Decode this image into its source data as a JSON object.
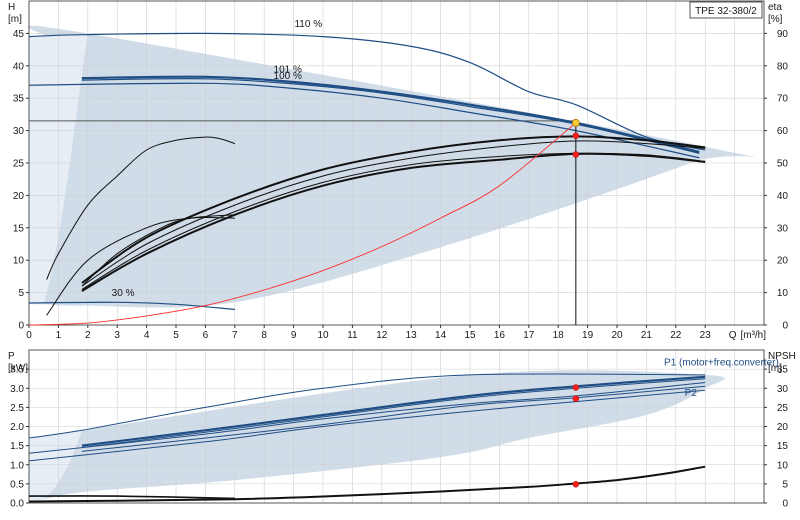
{
  "chart_data": [
    {
      "type": "line",
      "panel": "head-efficiency",
      "model_label": "TPE 32-380/2",
      "left_axis": {
        "symbol": "H",
        "unit": "[m]",
        "ticks": [
          0,
          5,
          10,
          15,
          20,
          25,
          30,
          35,
          40,
          45
        ],
        "range": [
          0,
          50
        ]
      },
      "right_axis": {
        "symbol": "eta",
        "unit": "[%]",
        "ticks": [
          0,
          10,
          20,
          30,
          40,
          50,
          60,
          70,
          80,
          90
        ],
        "range": [
          0,
          100
        ]
      },
      "x_axis": {
        "symbol": "Q",
        "unit": "[m³/h]",
        "ticks": [
          0,
          1,
          2,
          3,
          4,
          5,
          6,
          7,
          8,
          9,
          10,
          11,
          12,
          13,
          14,
          15,
          16,
          17,
          18,
          19,
          20,
          21,
          22,
          23
        ],
        "range": [
          0,
          25
        ]
      },
      "grid": true,
      "region": {
        "x": [
          0,
          0.5,
          2,
          23,
          22.5,
          14,
          7,
          1.8,
          0.5,
          0
        ],
        "y": [
          44.5,
          44.6,
          45,
          27.5,
          25,
          12,
          3.5,
          3,
          3.2,
          3.2
        ]
      },
      "speed_labels": [
        {
          "text": "110 %",
          "x": 9.5,
          "y": 46
        },
        {
          "text": "101 %",
          "x": 8.8,
          "y": 39
        },
        {
          "text": "100 %",
          "x": 8.8,
          "y": 38
        },
        {
          "text": "30 %",
          "x": 3.2,
          "y": 4.5
        }
      ],
      "series": [
        {
          "kind": "head",
          "x": [
            0,
            1.8,
            6,
            10,
            13,
            15,
            17,
            18.6,
            21,
            23
          ],
          "y": [
            44.5,
            44.8,
            45,
            44.5,
            43,
            40.5,
            36,
            34,
            29,
            27
          ]
        },
        {
          "kind": "head",
          "x": [
            1.8,
            6,
            9,
            12,
            15,
            18.6,
            22.8
          ],
          "y": [
            38.1,
            38.3,
            37.5,
            36,
            34,
            31.2,
            26.7
          ]
        },
        {
          "kind": "head",
          "x": [
            1.8,
            6,
            9,
            12,
            15,
            18.6,
            22.8
          ],
          "y": [
            37.8,
            38,
            37.2,
            35.8,
            33.7,
            31,
            26.5
          ]
        },
        {
          "kind": "head",
          "x": [
            0,
            6,
            9,
            12,
            15,
            18.6,
            22.8
          ],
          "y": [
            37,
            37.3,
            36.5,
            35,
            32.8,
            30,
            25.8
          ]
        },
        {
          "kind": "head",
          "x": [
            0,
            3,
            5,
            7
          ],
          "y": [
            3.4,
            3.5,
            3.2,
            2.4
          ]
        },
        {
          "kind": "efficiency",
          "x": [
            0.6,
            1,
            2,
            3,
            4,
            5,
            6,
            6.5,
            7
          ],
          "y": [
            14,
            22,
            37,
            46,
            54,
            57,
            58,
            57.5,
            56
          ]
        },
        {
          "kind": "efficiency",
          "x": [
            1.8,
            4,
            7,
            10,
            13,
            16,
            18.6,
            21,
            23
          ],
          "y": [
            13,
            27,
            39,
            48,
            53.5,
            57,
            58.2,
            57,
            54.8
          ]
        },
        {
          "kind": "efficiency",
          "x": [
            1.8,
            4,
            7,
            10,
            13,
            16,
            18.6,
            21,
            23
          ],
          "y": [
            12,
            25,
            37,
            46,
            51.5,
            55,
            56.8,
            56,
            54.5
          ]
        },
        {
          "kind": "efficiency",
          "x": [
            1.8,
            4,
            7,
            10,
            13,
            16,
            18.6,
            21,
            23
          ],
          "y": [
            11,
            23,
            35,
            44,
            49.5,
            52,
            53,
            52.5,
            50.5
          ]
        },
        {
          "kind": "efficiency",
          "x": [
            1.8,
            4,
            7,
            10,
            13,
            16,
            18.6,
            21,
            23
          ],
          "y": [
            10.5,
            22,
            34,
            43,
            48.5,
            51,
            52.8,
            52.2,
            50.3
          ]
        },
        {
          "kind": "efficiency",
          "x": [
            0.6,
            2,
            4,
            5.5,
            7
          ],
          "y": [
            3,
            20,
            30,
            33,
            33
          ]
        },
        {
          "kind": "efficiency",
          "x": [
            1.8,
            3,
            4.5,
            5.5,
            7
          ],
          "y": [
            12,
            22,
            30,
            33,
            34
          ]
        },
        {
          "kind": "system",
          "x": [
            0,
            2,
            4,
            6,
            8,
            10,
            12,
            14,
            16,
            18.6
          ],
          "y": [
            0,
            0.3,
            1.4,
            3,
            5.4,
            8.4,
            12.1,
            16.5,
            21.5,
            31.2
          ]
        }
      ],
      "reference_line": {
        "y": 31.5
      },
      "duty_point": {
        "q": 18.6,
        "h": 31.2,
        "eta_points": [
          58.4,
          52.6
        ]
      }
    },
    {
      "type": "line",
      "panel": "power-npsh",
      "left_axis": {
        "symbol": "P",
        "unit": "[kW]",
        "ticks": [
          0.0,
          0.5,
          1.0,
          1.5,
          2.0,
          2.5,
          3.0,
          3.5
        ],
        "range": [
          0,
          4
        ]
      },
      "right_axis": {
        "symbol": "NPSH",
        "unit": "[m]",
        "ticks": [
          0,
          5,
          10,
          15,
          20,
          25,
          30,
          35
        ],
        "range": [
          0,
          40
        ]
      },
      "x_axis": {
        "range": [
          0,
          25
        ]
      },
      "grid": true,
      "legend": [
        {
          "text": "P1 (motor+freq.converter)",
          "x": 21.6,
          "y": 3.6
        },
        {
          "text": "P2",
          "x": 22.3,
          "y": 2.8
        }
      ],
      "region": {
        "x": [
          0,
          1.8,
          15,
          23,
          23,
          21,
          17,
          14,
          7,
          2,
          0.5,
          0
        ],
        "y": [
          1.7,
          1.9,
          3.35,
          3.35,
          3.0,
          2.3,
          1.7,
          1.2,
          0.6,
          0.3,
          0.1,
          0.1
        ]
      },
      "series": [
        {
          "kind": "power",
          "x": [
            0,
            1.8,
            6,
            10,
            15,
            23
          ],
          "y": [
            1.7,
            1.9,
            2.5,
            3.0,
            3.35,
            3.35
          ]
        },
        {
          "kind": "power",
          "x": [
            1.8,
            6,
            10,
            15,
            18.6,
            23
          ],
          "y": [
            1.5,
            1.9,
            2.3,
            2.8,
            3.05,
            3.3
          ]
        },
        {
          "kind": "power",
          "x": [
            1.8,
            6,
            10,
            15,
            18.6,
            23
          ],
          "y": [
            1.45,
            1.85,
            2.25,
            2.75,
            3.0,
            3.25
          ]
        },
        {
          "kind": "power",
          "x": [
            0,
            6,
            10,
            15,
            18.6,
            23
          ],
          "y": [
            1.3,
            1.8,
            2.2,
            2.6,
            2.8,
            3.15
          ]
        },
        {
          "kind": "power",
          "x": [
            1.8,
            6,
            10,
            15,
            18.6,
            23
          ],
          "y": [
            1.35,
            1.7,
            2.05,
            2.55,
            2.75,
            3.05
          ]
        },
        {
          "kind": "power",
          "x": [
            0,
            6,
            10,
            15,
            18.6,
            23
          ],
          "y": [
            1.1,
            1.6,
            2.0,
            2.4,
            2.65,
            2.95
          ]
        },
        {
          "kind": "power",
          "x": [
            0,
            3,
            7
          ],
          "y": [
            0.18,
            0.18,
            0.12
          ]
        },
        {
          "kind": "npsh",
          "x": [
            0,
            3,
            7,
            10,
            14,
            17,
            18.6,
            20,
            21.5,
            23
          ],
          "y": [
            0.4,
            0.6,
            1.0,
            1.7,
            3.0,
            4.2,
            5.1,
            6.0,
            7.5,
            9.5
          ]
        }
      ],
      "duty_point": {
        "q": 18.6,
        "p_points": [
          3.02,
          2.73
        ],
        "npsh": 4.9
      }
    }
  ]
}
